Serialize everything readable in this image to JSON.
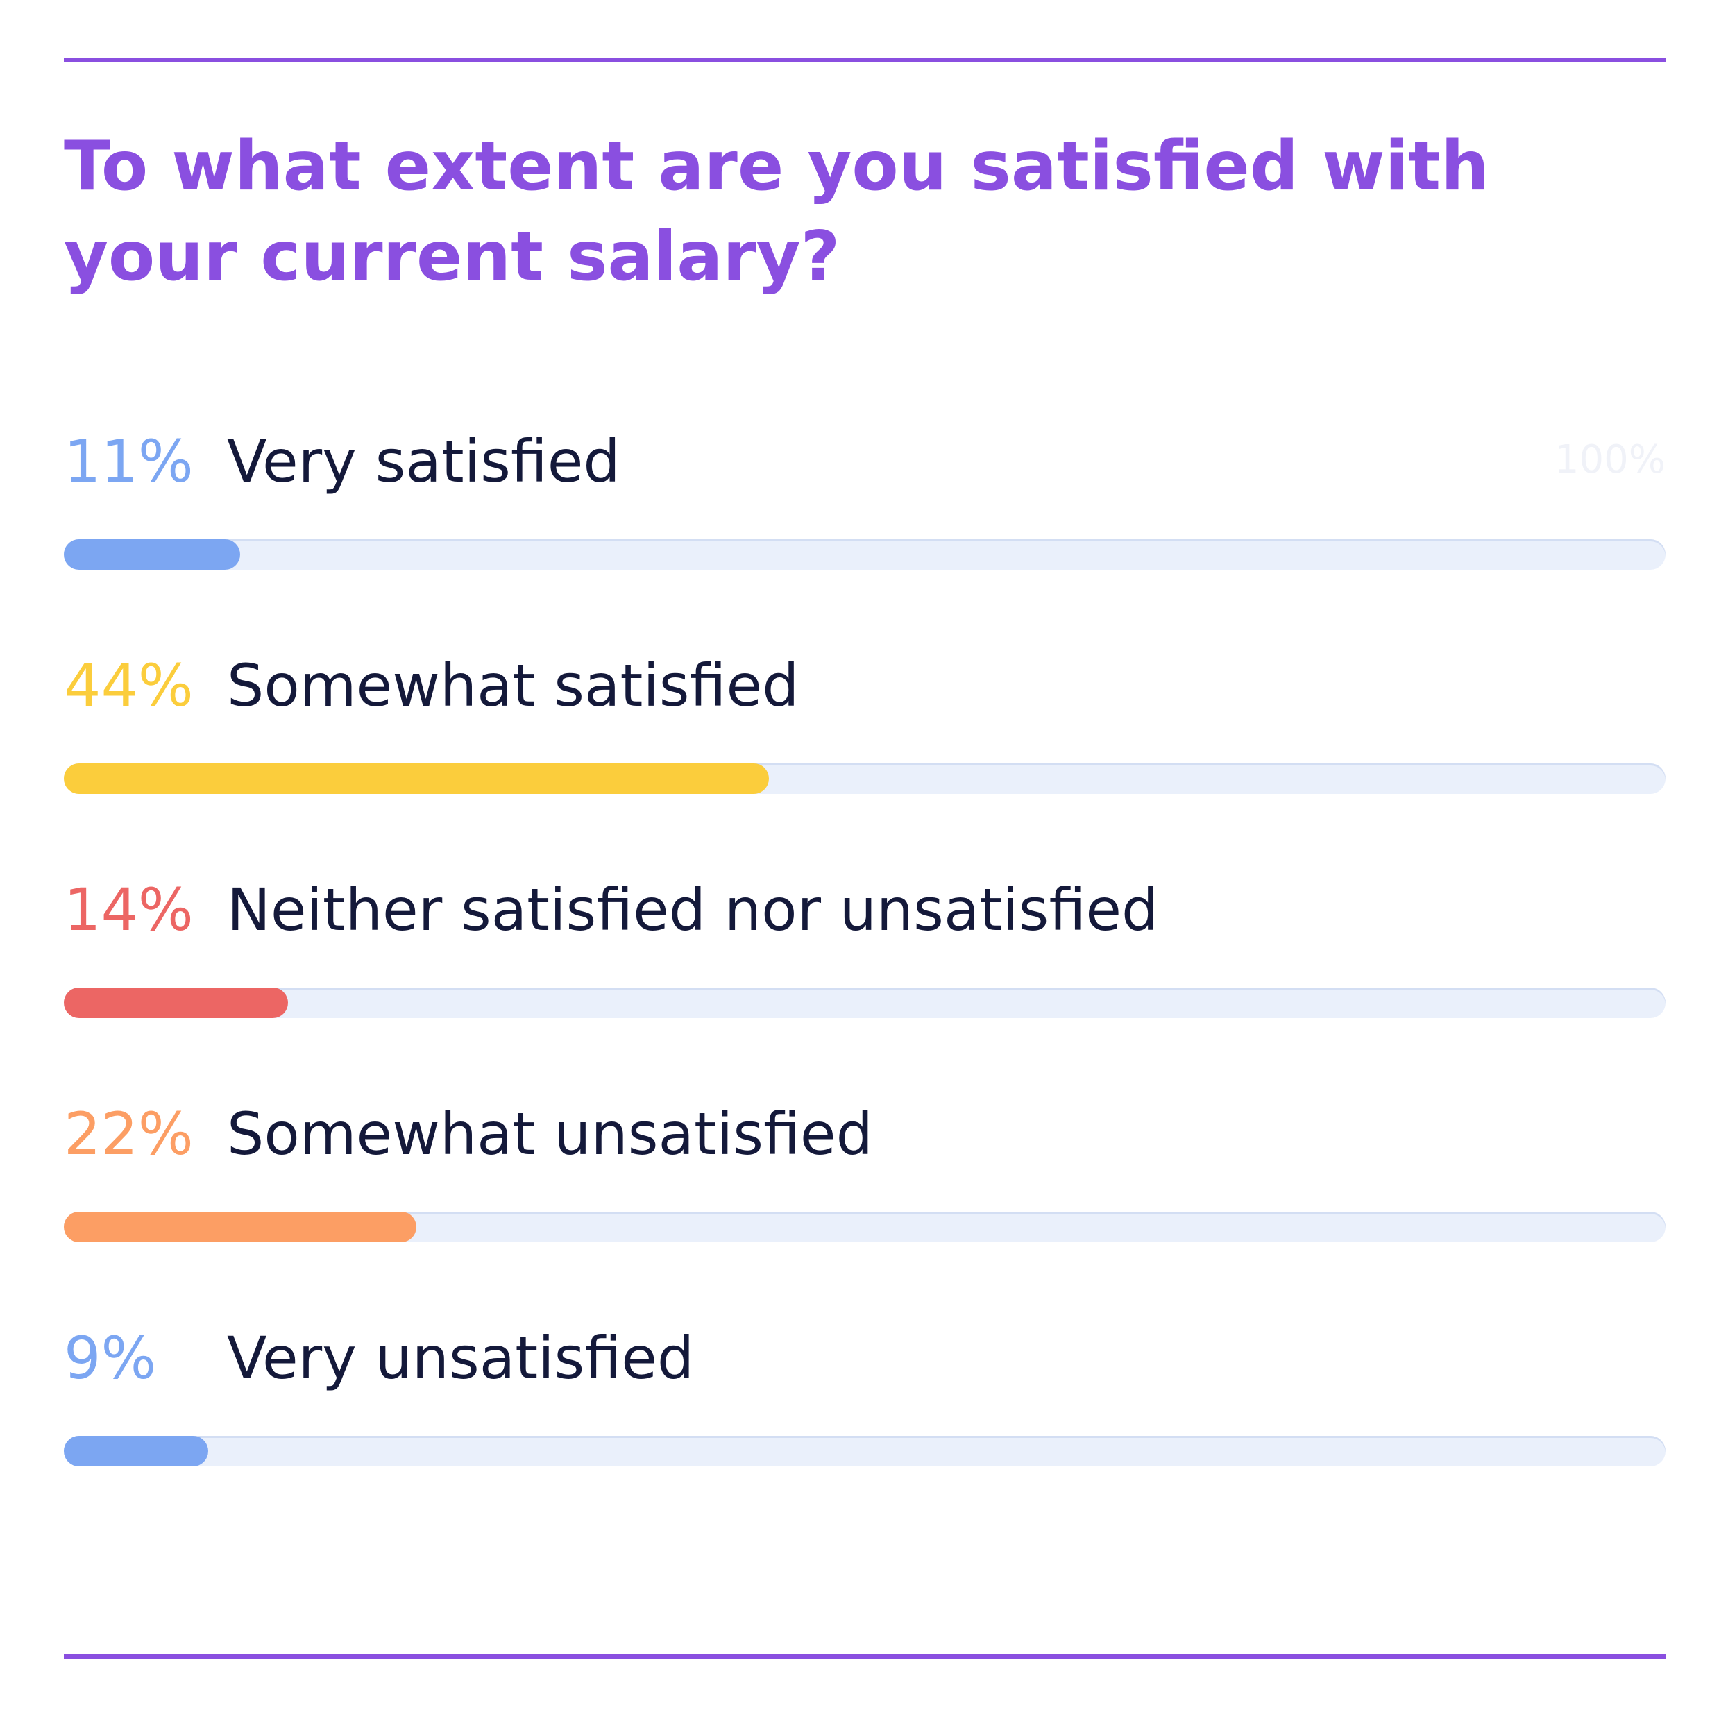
{
  "chart_data": {
    "type": "bar",
    "title": "To what extent are you satisfied with your current salary?",
    "scale_max_label": "100%",
    "xlim": [
      0,
      100
    ],
    "categories": [
      "Very satisfied",
      "Somewhat satisfied",
      "Neither satisfied nor unsatisfied",
      "Somewhat unsatisfied",
      "Very unsatisfied"
    ],
    "values": [
      11,
      44,
      14,
      22,
      9
    ],
    "value_labels": [
      "11%",
      "44%",
      "14%",
      "22%",
      "9%"
    ],
    "colors": [
      "#7ca6f2",
      "#fbcd3c",
      "#ec6664",
      "#fc9e64",
      "#7ca6f2"
    ]
  },
  "colors": {
    "accent": "#8a4fe0",
    "track": "#eaf0fb",
    "text": "#14193a"
  }
}
